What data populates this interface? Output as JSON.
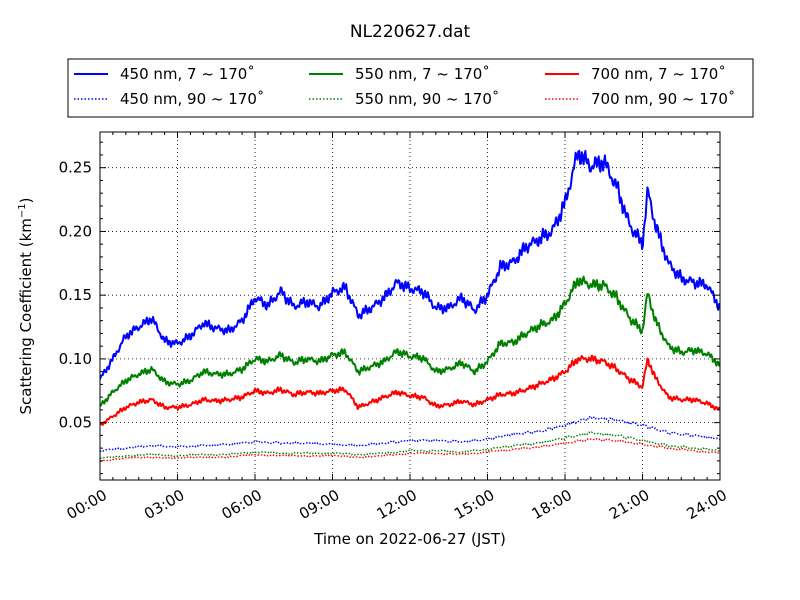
{
  "chart_data": {
    "type": "line",
    "title": "NL220627.dat",
    "xlabel": "Time on 2022-06-27 (JST)",
    "ylabel": "Scattering Coefficient (km⁻¹)",
    "ylabel_main": "Scattering Coefficient (km",
    "ylabel_sup": "−1",
    "ylabel_close": ")",
    "xlim": [
      0,
      24
    ],
    "ylim": [
      0.005,
      0.278
    ],
    "x_ticks": [
      0,
      3,
      6,
      9,
      12,
      15,
      18,
      21,
      24
    ],
    "x_tick_labels": [
      "00:00",
      "03:00",
      "06:00",
      "09:00",
      "12:00",
      "15:00",
      "18:00",
      "21:00",
      "24:00"
    ],
    "y_ticks": [
      0.05,
      0.1,
      0.15,
      0.2,
      0.25
    ],
    "y_tick_labels": [
      "0.05",
      "0.10",
      "0.15",
      "0.20",
      "0.25"
    ],
    "grid": true,
    "legend_position": "top",
    "series": [
      {
        "name": "450 nm, 7 ~ 170˚",
        "color": "#0000ff",
        "style": "solid",
        "x": [
          0,
          0.5,
          1,
          1.5,
          2,
          2.5,
          3,
          3.5,
          4,
          4.5,
          5,
          5.5,
          6,
          6.5,
          7,
          7.5,
          8,
          8.5,
          9,
          9.5,
          10,
          10.5,
          11,
          11.5,
          12,
          12.5,
          13,
          13.5,
          14,
          14.5,
          15,
          15.5,
          16,
          16.5,
          17,
          17.5,
          18,
          18.5,
          19,
          19.5,
          20,
          20.5,
          21,
          21.2,
          21.5,
          22,
          22.5,
          23,
          23.5,
          24
        ],
        "y": [
          0.084,
          0.1,
          0.118,
          0.125,
          0.132,
          0.114,
          0.112,
          0.118,
          0.128,
          0.124,
          0.122,
          0.13,
          0.148,
          0.142,
          0.153,
          0.141,
          0.145,
          0.141,
          0.152,
          0.156,
          0.134,
          0.14,
          0.148,
          0.16,
          0.155,
          0.153,
          0.14,
          0.14,
          0.148,
          0.138,
          0.15,
          0.172,
          0.176,
          0.188,
          0.194,
          0.2,
          0.222,
          0.262,
          0.251,
          0.255,
          0.235,
          0.205,
          0.19,
          0.232,
          0.205,
          0.175,
          0.163,
          0.16,
          0.158,
          0.14
        ]
      },
      {
        "name": "550 nm, 7 ~ 170˚",
        "color": "#008000",
        "style": "solid",
        "x": [
          0,
          0.5,
          1,
          1.5,
          2,
          2.5,
          3,
          3.5,
          4,
          4.5,
          5,
          5.5,
          6,
          6.5,
          7,
          7.5,
          8,
          8.5,
          9,
          9.5,
          10,
          10.5,
          11,
          11.5,
          12,
          12.5,
          13,
          13.5,
          14,
          14.5,
          15,
          15.5,
          16,
          16.5,
          17,
          17.5,
          18,
          18.5,
          19,
          19.5,
          20,
          20.5,
          21,
          21.2,
          21.5,
          22,
          22.5,
          23,
          23.5,
          24
        ],
        "y": [
          0.063,
          0.074,
          0.083,
          0.088,
          0.092,
          0.082,
          0.08,
          0.083,
          0.09,
          0.088,
          0.088,
          0.092,
          0.1,
          0.098,
          0.103,
          0.097,
          0.1,
          0.098,
          0.103,
          0.105,
          0.09,
          0.094,
          0.098,
          0.106,
          0.102,
          0.101,
          0.09,
          0.092,
          0.097,
          0.09,
          0.098,
          0.112,
          0.113,
          0.12,
          0.126,
          0.13,
          0.143,
          0.162,
          0.158,
          0.158,
          0.148,
          0.132,
          0.122,
          0.152,
          0.13,
          0.11,
          0.105,
          0.107,
          0.104,
          0.095
        ]
      },
      {
        "name": "700 nm, 7 ~ 170˚",
        "color": "#ff0000",
        "style": "solid",
        "x": [
          0,
          0.5,
          1,
          1.5,
          2,
          2.5,
          3,
          3.5,
          4,
          4.5,
          5,
          5.5,
          6,
          6.5,
          7,
          7.5,
          8,
          8.5,
          9,
          9.5,
          10,
          10.5,
          11,
          11.5,
          12,
          12.5,
          13,
          13.5,
          14,
          14.5,
          15,
          15.5,
          16,
          16.5,
          17,
          17.5,
          18,
          18.5,
          19,
          19.5,
          20,
          20.5,
          21,
          21.2,
          21.5,
          22,
          22.5,
          23,
          23.5,
          24
        ],
        "y": [
          0.048,
          0.055,
          0.062,
          0.066,
          0.068,
          0.062,
          0.062,
          0.064,
          0.068,
          0.067,
          0.068,
          0.07,
          0.075,
          0.073,
          0.076,
          0.072,
          0.074,
          0.073,
          0.075,
          0.076,
          0.062,
          0.066,
          0.07,
          0.074,
          0.071,
          0.07,
          0.063,
          0.064,
          0.067,
          0.064,
          0.068,
          0.072,
          0.073,
          0.076,
          0.08,
          0.084,
          0.09,
          0.1,
          0.1,
          0.098,
          0.092,
          0.084,
          0.078,
          0.1,
          0.085,
          0.07,
          0.068,
          0.068,
          0.065,
          0.06
        ]
      },
      {
        "name": "450 nm, 90 ~ 170˚",
        "color": "#0000ff",
        "style": "dotted",
        "x": [
          0,
          1,
          2,
          3,
          4,
          5,
          6,
          7,
          8,
          9,
          10,
          11,
          12,
          13,
          14,
          15,
          16,
          17,
          18,
          19,
          20,
          21,
          22,
          23,
          24
        ],
        "y": [
          0.028,
          0.03,
          0.032,
          0.031,
          0.032,
          0.033,
          0.035,
          0.034,
          0.034,
          0.033,
          0.032,
          0.034,
          0.036,
          0.036,
          0.035,
          0.037,
          0.041,
          0.043,
          0.048,
          0.054,
          0.052,
          0.048,
          0.042,
          0.04,
          0.037
        ]
      },
      {
        "name": "550 nm, 90 ~ 170˚",
        "color": "#008000",
        "style": "dotted",
        "x": [
          0,
          1,
          2,
          3,
          4,
          5,
          6,
          7,
          8,
          9,
          10,
          11,
          12,
          13,
          14,
          15,
          16,
          17,
          18,
          19,
          20,
          21,
          22,
          23,
          24
        ],
        "y": [
          0.022,
          0.024,
          0.025,
          0.024,
          0.025,
          0.025,
          0.027,
          0.026,
          0.026,
          0.026,
          0.025,
          0.026,
          0.028,
          0.028,
          0.027,
          0.029,
          0.032,
          0.034,
          0.038,
          0.042,
          0.04,
          0.036,
          0.032,
          0.03,
          0.028
        ]
      },
      {
        "name": "700 nm, 90 ~ 170˚",
        "color": "#ff0000",
        "style": "dotted",
        "x": [
          0,
          1,
          2,
          3,
          4,
          5,
          6,
          7,
          8,
          9,
          10,
          11,
          12,
          13,
          14,
          15,
          16,
          17,
          18,
          19,
          20,
          21,
          22,
          23,
          24
        ],
        "y": [
          0.02,
          0.022,
          0.023,
          0.022,
          0.023,
          0.023,
          0.025,
          0.024,
          0.024,
          0.024,
          0.023,
          0.024,
          0.026,
          0.026,
          0.025,
          0.027,
          0.029,
          0.031,
          0.034,
          0.037,
          0.036,
          0.033,
          0.03,
          0.028,
          0.026
        ]
      }
    ]
  }
}
